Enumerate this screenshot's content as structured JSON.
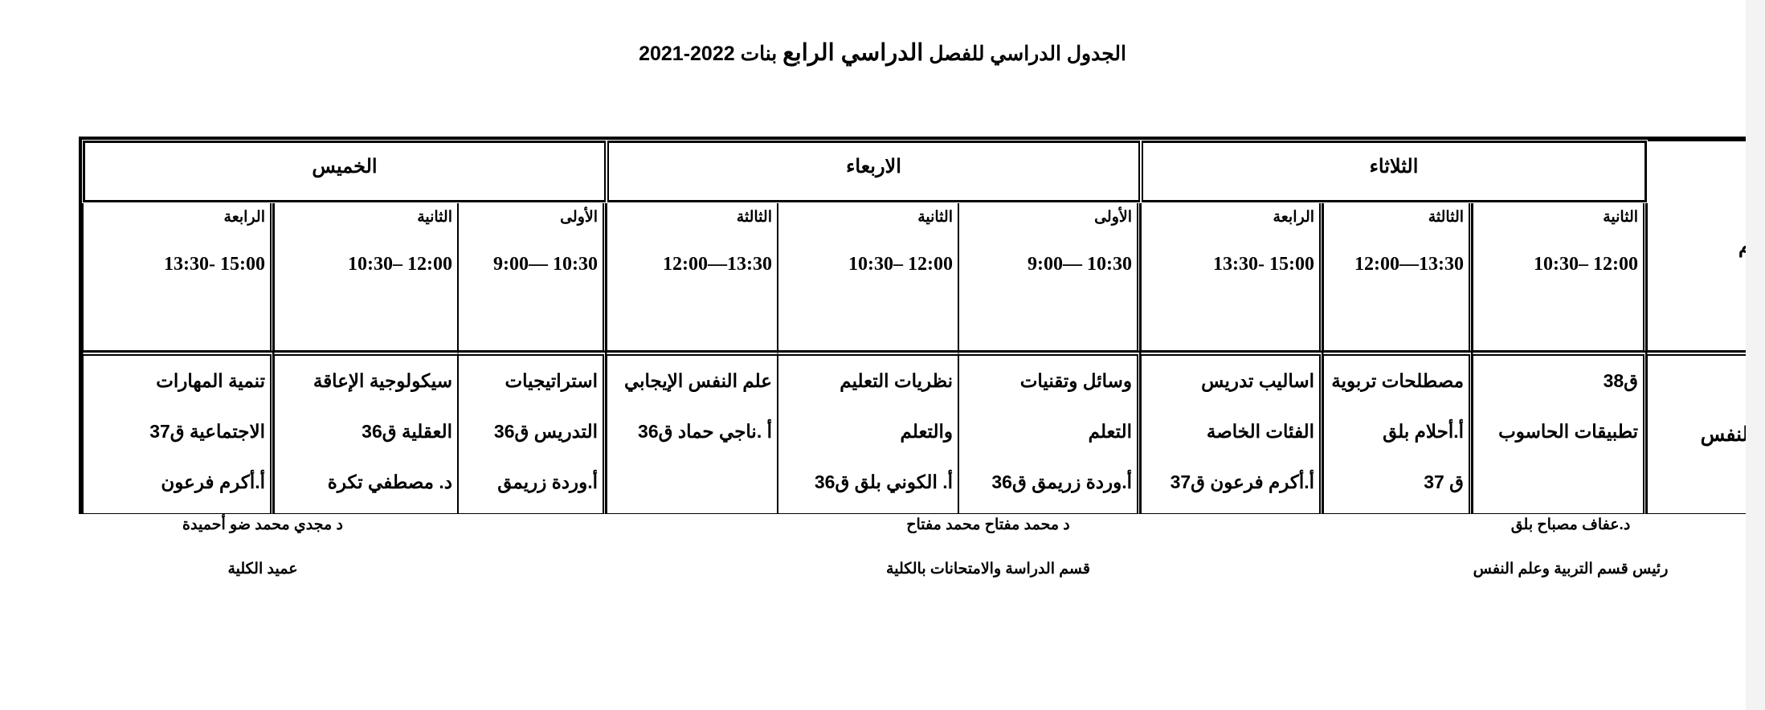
{
  "title": {
    "part1": "الجدول الدراسي  للفصل",
    "part2": "الدراسي الرابع",
    "part3": " بنات 2022-2021"
  },
  "qism_header": "القسم",
  "department": "علم النفس",
  "days": [
    {
      "name": "الثلاثاء",
      "periods": [
        {
          "label": "الثانية",
          "time": "10:30– 12:00",
          "lines": [
            "ق38",
            "تطبيقات الحاسوب",
            ""
          ]
        },
        {
          "label": "الثالثة",
          "time": "12:00—13:30",
          "lines": [
            "مصطلحات تربوية",
            "أ.أحلام بلق",
            "ق 37"
          ]
        },
        {
          "label": "الرابعة",
          "time": "13:30- 15:00",
          "lines": [
            "اساليب تدريس",
            "الفئات الخاصة",
            "أ.أكرم فرعون ق37"
          ]
        }
      ]
    },
    {
      "name": "الاربعاء",
      "periods": [
        {
          "label": "الأولى",
          "time": "9:00— 10:30",
          "lines": [
            "وسائل وتقنيات",
            "التعلم",
            "أ.وردة زريمق ق36"
          ]
        },
        {
          "label": "الثانية",
          "time": "10:30– 12:00",
          "lines": [
            "نظريات التعليم",
            "والتعلم",
            "أ. الكوني بلق ق36"
          ]
        },
        {
          "label": "الثالثة",
          "time": "12:00—13:30",
          "lines": [
            "علم النفس الإيجابي",
            "أ .ناجي حماد ق36",
            ""
          ]
        }
      ]
    },
    {
      "name": "الخميس",
      "periods": [
        {
          "label": "الأولى",
          "time": "9:00— 10:30",
          "lines": [
            "استراتيجيات",
            "التدريس ق36",
            "أ.وردة زريمق"
          ]
        },
        {
          "label": "الثانية",
          "time": "10:30– 12:00",
          "lines": [
            "سيكولوجية الإعاقة",
            "العقلية ق36",
            "د. مصطفي تكرة"
          ]
        },
        {
          "label": "الرابعة",
          "time": "13:30- 15:00",
          "lines": [
            "تنمية المهارات",
            "الاجتماعية ق37",
            "أ.أكرم فرعون"
          ]
        }
      ]
    }
  ],
  "signatures": [
    {
      "name": "د.عفاف مصباح بلق",
      "role": "رئيس قسم التربية وعلم النفس"
    },
    {
      "name": "د محمد مفتاح محمد مفتاح",
      "role": "قسم الدراسة والامتحانات بالكلية"
    },
    {
      "name": "د مجدي محمد ضو أحميدة",
      "role": "عميد الكلية"
    }
  ]
}
